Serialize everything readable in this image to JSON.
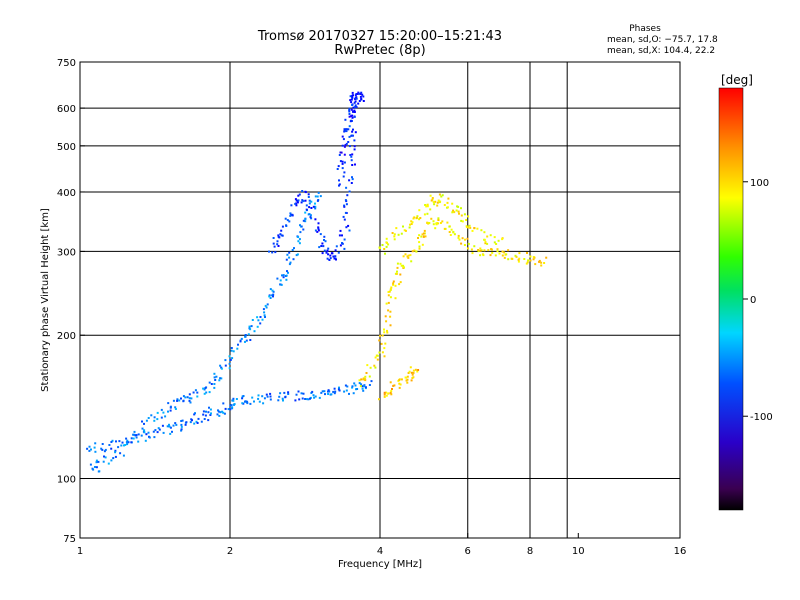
{
  "chart_data": {
    "type": "scatter",
    "title": "Tromsø 20170327 15:20:00–15:21:43",
    "subtitle": "RwPretec (8p)",
    "xlabel": "Frequency [MHz]",
    "ylabel": "Stationary phase Virtual Height [km]",
    "x_scale": "log",
    "y_scale": "log",
    "xlim": [
      1,
      16
    ],
    "ylim": [
      75,
      750
    ],
    "x_ticks": [
      1,
      2,
      4,
      6,
      8,
      10,
      16
    ],
    "y_ticks": [
      75,
      100,
      200,
      300,
      400,
      500,
      600,
      750
    ],
    "x_grid": [
      2,
      4,
      6,
      8,
      9.5
    ],
    "y_grid": [
      100,
      200,
      300,
      400,
      500,
      600
    ],
    "grid": true,
    "phases_box": {
      "title": "Phases",
      "line_o": "mean, sd,O: −75.7, 17.8",
      "line_x": "mean, sd,X: 104.4, 22.2"
    },
    "colorbar": {
      "label": "[deg]",
      "range": [
        -180,
        180
      ],
      "ticks": [
        100,
        0,
        -100
      ],
      "colormap": "rainbow"
    },
    "series": [
      {
        "id": "o_mode_lower",
        "mean_phase": -90,
        "points": [
          [
            1.0,
            116
          ],
          [
            1.1,
            117
          ],
          [
            1.2,
            120
          ],
          [
            1.3,
            122
          ],
          [
            1.4,
            125
          ],
          [
            1.5,
            128
          ],
          [
            1.6,
            131
          ],
          [
            1.7,
            134
          ],
          [
            1.8,
            137
          ],
          [
            1.9,
            140
          ],
          [
            2.0,
            144
          ],
          [
            2.1,
            146
          ],
          [
            2.2,
            147
          ],
          [
            2.4,
            148
          ],
          [
            2.6,
            149
          ],
          [
            2.8,
            150
          ],
          [
            3.0,
            151
          ],
          [
            3.2,
            152
          ],
          [
            3.4,
            154
          ],
          [
            3.6,
            156
          ],
          [
            3.8,
            158
          ]
        ]
      },
      {
        "id": "o_mode_upper",
        "mean_phase": -85,
        "points": [
          [
            1.05,
            105
          ],
          [
            1.1,
            108
          ],
          [
            1.2,
            115
          ],
          [
            1.3,
            125
          ],
          [
            1.4,
            135
          ],
          [
            1.5,
            142
          ],
          [
            1.6,
            147
          ],
          [
            1.7,
            150
          ],
          [
            1.8,
            155
          ],
          [
            1.9,
            165
          ],
          [
            2.0,
            180
          ],
          [
            2.1,
            195
          ],
          [
            2.2,
            205
          ],
          [
            2.3,
            220
          ],
          [
            2.4,
            240
          ],
          [
            2.5,
            260
          ],
          [
            2.6,
            280
          ],
          [
            2.7,
            310
          ],
          [
            2.8,
            345
          ],
          [
            2.9,
            370
          ],
          [
            3.0,
            400
          ]
        ]
      },
      {
        "id": "o_mode_f_trace",
        "mean_phase": -110,
        "points": [
          [
            2.4,
            300
          ],
          [
            2.5,
            320
          ],
          [
            2.6,
            350
          ],
          [
            2.7,
            380
          ],
          [
            2.8,
            400
          ],
          [
            2.9,
            370
          ],
          [
            3.0,
            330
          ],
          [
            3.1,
            300
          ],
          [
            3.2,
            290
          ],
          [
            3.3,
            305
          ],
          [
            3.4,
            340
          ],
          [
            3.45,
            400
          ],
          [
            3.5,
            470
          ],
          [
            3.5,
            540
          ],
          [
            3.5,
            600
          ],
          [
            3.5,
            640
          ]
        ]
      },
      {
        "id": "o_mode_cusp_column",
        "mean_phase": -120,
        "points": [
          [
            3.3,
            420
          ],
          [
            3.35,
            470
          ],
          [
            3.4,
            520
          ],
          [
            3.45,
            560
          ],
          [
            3.5,
            600
          ],
          [
            3.55,
            630
          ],
          [
            3.6,
            645
          ],
          [
            3.65,
            630
          ]
        ]
      },
      {
        "id": "x_mode_trace",
        "mean_phase": 110,
        "points": [
          [
            3.6,
            158
          ],
          [
            3.8,
            170
          ],
          [
            4.0,
            185
          ],
          [
            4.1,
            210
          ],
          [
            4.2,
            240
          ],
          [
            4.3,
            260
          ],
          [
            4.4,
            280
          ],
          [
            4.6,
            300
          ],
          [
            4.8,
            320
          ],
          [
            5.0,
            340
          ],
          [
            5.2,
            350
          ],
          [
            5.5,
            340
          ],
          [
            5.8,
            320
          ],
          [
            6.2,
            300
          ],
          [
            6.6,
            300
          ],
          [
            7.0,
            300
          ],
          [
            7.5,
            295
          ],
          [
            8.0,
            290
          ],
          [
            8.5,
            285
          ]
        ]
      },
      {
        "id": "x_mode_lower",
        "mean_phase": 120,
        "points": [
          [
            4.0,
            150
          ],
          [
            4.2,
            155
          ],
          [
            4.4,
            160
          ],
          [
            4.6,
            165
          ],
          [
            4.7,
            170
          ]
        ]
      },
      {
        "id": "x_mode_upper",
        "mean_phase": 105,
        "points": [
          [
            4.0,
            300
          ],
          [
            4.2,
            320
          ],
          [
            4.5,
            340
          ],
          [
            4.8,
            360
          ],
          [
            5.0,
            380
          ],
          [
            5.2,
            390
          ],
          [
            5.5,
            380
          ],
          [
            5.8,
            360
          ],
          [
            6.0,
            340
          ],
          [
            6.5,
            320
          ],
          [
            7.0,
            320
          ]
        ]
      }
    ]
  }
}
